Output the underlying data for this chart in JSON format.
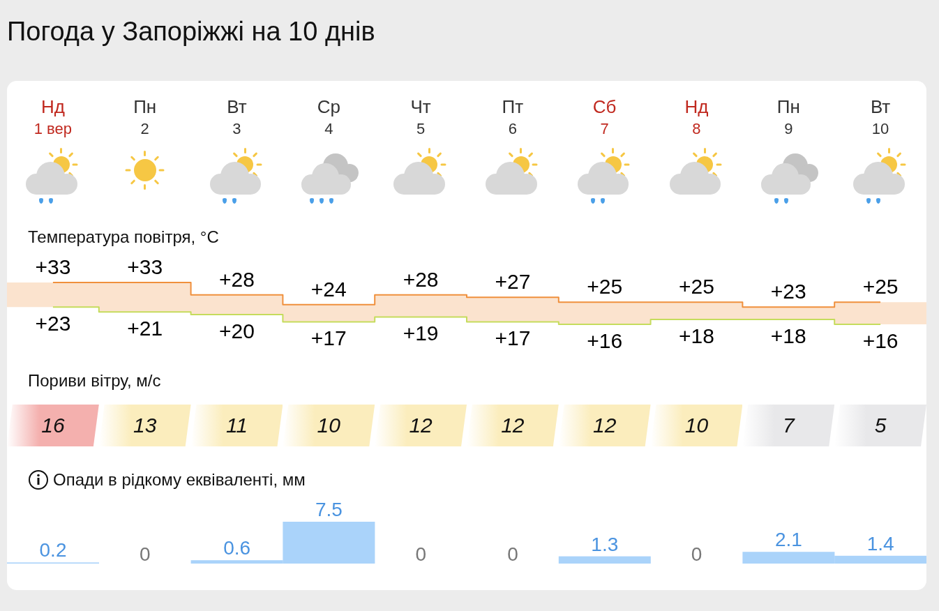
{
  "chart_data": [
    {
      "type": "step",
      "title": "Погода у Запоріжжі на 10 днів",
      "subtitle": "Температура повітря, °C",
      "categories": [
        "Нд 1 вер",
        "Пн 2",
        "Вт 3",
        "Ср 4",
        "Чт 5",
        "Пт 6",
        "Сб 7",
        "Нд 8",
        "Пн 9",
        "Вт 10"
      ],
      "series": [
        {
          "color": "#f0903c",
          "values": [
            33,
            33,
            28,
            24,
            28,
            27,
            25,
            25,
            23,
            25
          ],
          "value_labels": [
            "+33",
            "+33",
            "+28",
            "+24",
            "+28",
            "+27",
            "+25",
            "+25",
            "+23",
            "+25"
          ]
        },
        {
          "color": "#c5dc5c",
          "values": [
            23,
            21,
            20,
            17,
            19,
            17,
            16,
            18,
            18,
            16
          ],
          "value_labels": [
            "+23",
            "+21",
            "+20",
            "+17",
            "+19",
            "+17",
            "+16",
            "+18",
            "+18",
            "+16"
          ]
        }
      ]
    },
    {
      "type": "other",
      "title": "Пориви вітру, м/с",
      "categories": [
        null,
        null,
        null,
        null,
        null,
        null,
        null,
        null,
        null,
        null
      ],
      "values": [
        16,
        13,
        11,
        10,
        12,
        12,
        12,
        10,
        7,
        5
      ],
      "colors": [
        "#f4b0ae",
        "#fbedbd",
        "#fbedbd",
        "#fbedbd",
        "#fbedbd",
        "#fbedbd",
        "#fbedbd",
        "#fbedbd",
        "#e8e8ea",
        "#e8e8ea"
      ],
      "data_labels": true
    },
    {
      "type": "bar",
      "title": "Опади в рідкому еквіваленті, мм",
      "categories": [
        null,
        null,
        null,
        null,
        null,
        null,
        null,
        null,
        null,
        null
      ],
      "values": [
        0.2,
        0,
        0.6,
        7.5,
        0,
        0,
        1.3,
        0,
        2.1,
        1.4
      ],
      "color": "#aad3fa",
      "data_labels": true
    }
  ]
}
